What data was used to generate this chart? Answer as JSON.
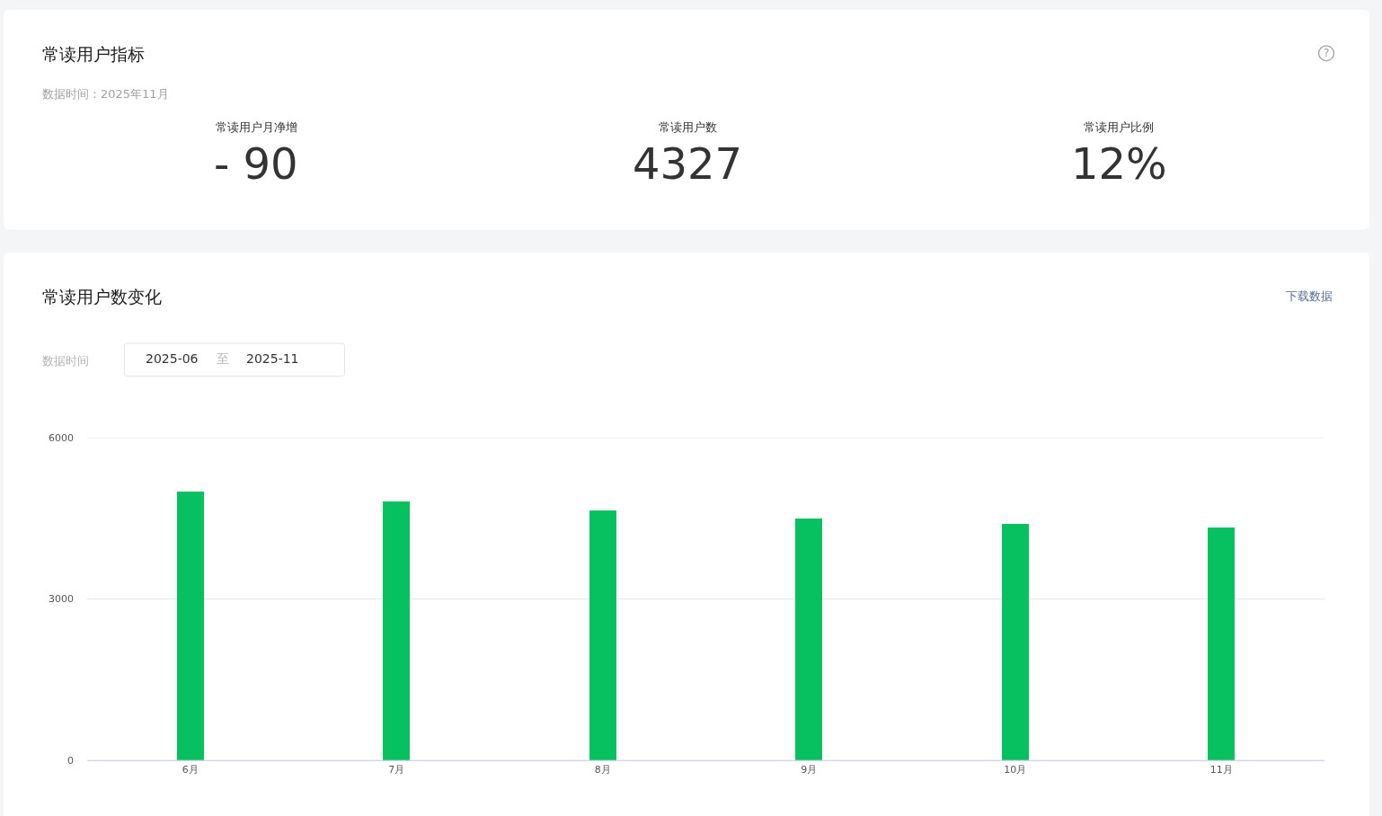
{
  "chart_data": [
    {
      "type": "other",
      "title": "常读用户指标",
      "subtitle": "数据时间：2025年11月",
      "annotations": [
        "?",
        "常读用户月净增",
        "- 90",
        "常读用户数",
        "4327",
        "常读用户比例",
        "12%"
      ]
    },
    {
      "type": "bar",
      "title": "常读用户数变化",
      "annotations": [
        "下载数据",
        "数据时间",
        "2025-06",
        "至",
        "2025-11"
      ],
      "categories": [
        "6月",
        "7月",
        "8月",
        "9月",
        "10月",
        "11月"
      ],
      "values": [
        5000,
        4820,
        4650,
        4490,
        4390,
        4320
      ],
      "color": "#07c160",
      "ylim": [
        0,
        6000
      ],
      "yticks": [
        0,
        3000,
        6000
      ],
      "grid": "y"
    }
  ]
}
